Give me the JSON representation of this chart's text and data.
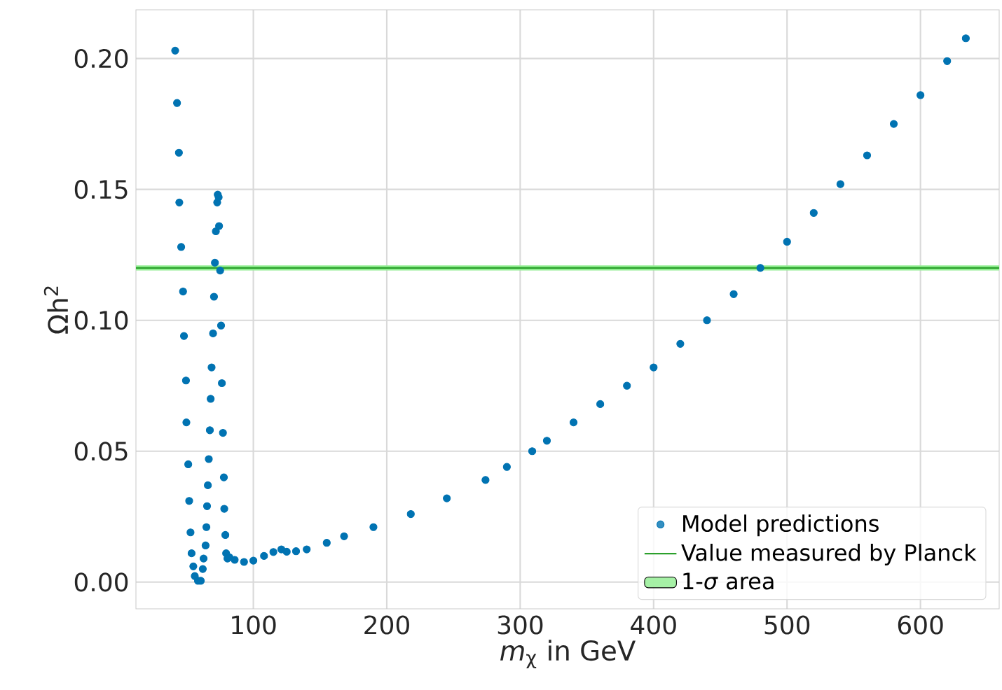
{
  "chart_data": {
    "type": "scatter",
    "xlabel": "*m*$_{χ}$ in GeV",
    "ylabel": "Ωh$^{2}$",
    "xlim": [
      12,
      659
    ],
    "ylim": [
      -0.0102,
      0.2186
    ],
    "xticks": [
      100,
      200,
      300,
      400,
      500,
      600
    ],
    "yticks": [
      {
        "value": 0,
        "label": "0.00"
      },
      {
        "value": 0.05,
        "label": "0.05"
      },
      {
        "value": 0.1,
        "label": "0.10"
      },
      {
        "value": 0.15,
        "label": "0.15"
      },
      {
        "value": 0.2,
        "label": "0.20"
      }
    ],
    "grid": true,
    "legend": "bottom right",
    "marker": "circle",
    "series": [
      {
        "name": "Model predictions",
        "color": "#0173b2",
        "x": [
          41.4,
          42.8,
          44.2,
          44.5,
          45.9,
          47.3,
          48.0,
          49.5,
          49.8,
          51.2,
          51.9,
          52.9,
          53.7,
          55.0,
          56.1,
          58.5,
          60.6,
          62.1,
          62.7,
          64.2,
          64.8,
          65.3,
          65.9,
          66.6,
          67.4,
          68.0,
          68.7,
          69.8,
          70.5,
          71.2,
          71.9,
          72.9,
          73.3,
          74.0,
          74.3,
          75.1,
          75.8,
          76.4,
          77.2,
          77.9,
          78.2,
          79.0,
          79.6,
          80.6,
          82,
          86,
          93,
          100,
          108,
          115,
          121,
          125,
          132,
          140,
          155,
          168,
          190,
          218,
          245,
          274,
          290,
          309,
          320,
          340,
          360,
          380,
          400,
          420,
          440,
          460,
          480,
          500,
          520,
          540,
          560,
          580,
          600,
          620,
          634
        ],
        "values": [
          0.203,
          0.183,
          0.164,
          0.145,
          0.128,
          0.111,
          0.094,
          0.077,
          0.061,
          0.045,
          0.031,
          0.019,
          0.011,
          0.006,
          0.0023,
          0.0005,
          0.0005,
          0.005,
          0.009,
          0.014,
          0.021,
          0.029,
          0.037,
          0.047,
          0.058,
          0.07,
          0.082,
          0.095,
          0.109,
          0.122,
          0.134,
          0.145,
          0.148,
          0.147,
          0.136,
          0.119,
          0.098,
          0.076,
          0.057,
          0.04,
          0.028,
          0.018,
          0.011,
          0.009,
          0.0095,
          0.0085,
          0.0077,
          0.0082,
          0.01,
          0.0115,
          0.0125,
          0.0116,
          0.0118,
          0.0125,
          0.015,
          0.0175,
          0.021,
          0.026,
          0.032,
          0.039,
          0.044,
          0.05,
          0.054,
          0.061,
          0.068,
          0.075,
          0.082,
          0.091,
          0.1,
          0.11,
          0.12,
          0.13,
          0.141,
          0.152,
          0.163,
          0.175,
          0.186,
          0.199,
          0.2077
        ]
      }
    ],
    "ref_lines": [
      {
        "axis": "y",
        "value": 0.12,
        "label": "Value measured by Planck",
        "color": "#2ca02c"
      }
    ],
    "bands": [
      {
        "axis": "y",
        "from": 0.119,
        "to": 0.121,
        "label": "1-*σ* area",
        "color": "#90ee90"
      }
    ]
  }
}
